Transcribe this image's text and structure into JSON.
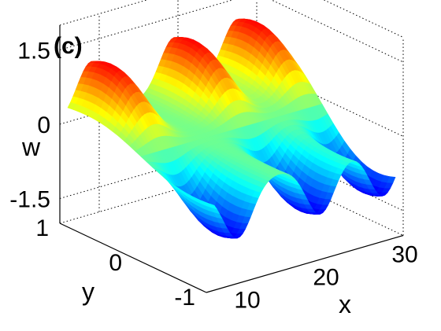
{
  "chart_data": {
    "type": "surface",
    "panel_label": "(c)",
    "xlabel": "x",
    "ylabel": "y",
    "zlabel": "w",
    "xlim": [
      5,
      30
    ],
    "ylim": [
      -1,
      1
    ],
    "zlim": [
      -2,
      2
    ],
    "x_ticks": [
      10,
      20,
      30
    ],
    "x_tick_labels": [
      "10",
      "20",
      "30"
    ],
    "y_ticks": [
      -1,
      0,
      1
    ],
    "y_tick_labels": [
      "-1",
      "0",
      "1"
    ],
    "z_ticks": [
      -1.5,
      0,
      1.5
    ],
    "z_tick_labels": [
      "-1.5",
      "0",
      "1.5"
    ],
    "grid": true,
    "colormap": "jet",
    "surface": {
      "description": "Antisymmetric-in-y wave surface: crests at positive y, troughs at negative y",
      "peaks_x": [
        9,
        19.5,
        27.5
      ],
      "peak_value": 1.6,
      "trough_value": -1.5
    }
  }
}
